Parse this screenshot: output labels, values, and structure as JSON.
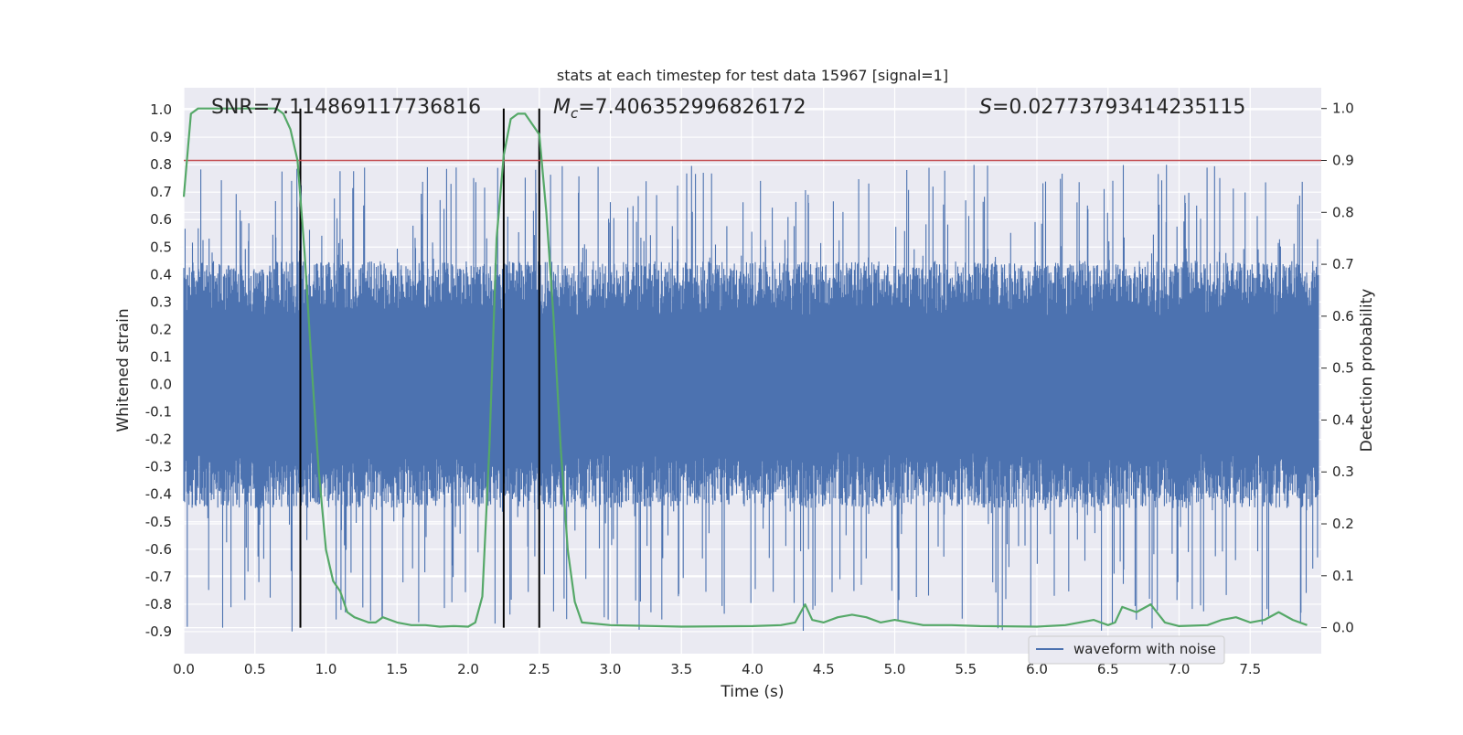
{
  "chart_data": {
    "type": "line",
    "title": "stats at each timestep for test data 15967 [signal=1]",
    "xlabel": "Time (s)",
    "ylabel": "Whitened strain",
    "y2label": "Detection probability",
    "xlim": [
      0.0,
      8.0
    ],
    "ylim": [
      -0.98,
      1.08
    ],
    "y2lim": [
      -0.05,
      1.04
    ],
    "xticks": [
      "0.0",
      "0.5",
      "1.0",
      "1.5",
      "2.0",
      "2.5",
      "3.0",
      "3.5",
      "4.0",
      "4.5",
      "5.0",
      "5.5",
      "6.0",
      "6.5",
      "7.0",
      "7.5"
    ],
    "yticks": [
      "1.0",
      "0.9",
      "0.8",
      "0.7",
      "0.6",
      "0.5",
      "0.4",
      "0.3",
      "0.2",
      "0.1",
      "0.0",
      "-0.1",
      "-0.2",
      "-0.3",
      "-0.4",
      "-0.5",
      "-0.6",
      "-0.7",
      "-0.8",
      "-0.9"
    ],
    "y2ticks": [
      "1.0",
      "0.9",
      "0.8",
      "0.7",
      "0.6",
      "0.5",
      "0.4",
      "0.3",
      "0.2",
      "0.1",
      "0.0"
    ],
    "annotations": {
      "snr": "SNR=7.114869117736816",
      "mc_symbol": "M",
      "mc_subscript": "c",
      "mc_value": "=7.406352996826172",
      "s_symbol": "S",
      "s_value": "=0.02773793414235115"
    },
    "threshold": {
      "value": 0.9,
      "axis": "right",
      "color": "#c44e52"
    },
    "vertical_lines": [
      0.82,
      2.25,
      2.5
    ],
    "legend": {
      "placement": "lower-right",
      "entries": [
        "waveform with noise"
      ]
    },
    "grid": true,
    "series": [
      {
        "name": "waveform with noise",
        "axis": "left",
        "color": "#4c72b0",
        "kind": "noise",
        "typical_envelope": [
          -0.45,
          0.45
        ],
        "peak_range": [
          -0.9,
          0.8
        ]
      },
      {
        "axis": "right",
        "color": "#55a868",
        "x": [
          0.0,
          0.05,
          0.1,
          0.2,
          0.3,
          0.4,
          0.5,
          0.6,
          0.65,
          0.7,
          0.75,
          0.8,
          0.85,
          0.9,
          0.95,
          1.0,
          1.05,
          1.1,
          1.15,
          1.2,
          1.3,
          1.35,
          1.4,
          1.5,
          1.6,
          1.7,
          1.8,
          1.9,
          2.0,
          2.05,
          2.1,
          2.15,
          2.2,
          2.25,
          2.3,
          2.35,
          2.4,
          2.45,
          2.5,
          2.55,
          2.6,
          2.65,
          2.7,
          2.75,
          2.8,
          3.0,
          3.5,
          4.0,
          4.2,
          4.3,
          4.37,
          4.42,
          4.5,
          4.6,
          4.7,
          4.8,
          4.9,
          5.0,
          5.1,
          5.2,
          5.4,
          5.6,
          6.0,
          6.2,
          6.3,
          6.4,
          6.5,
          6.55,
          6.6,
          6.7,
          6.8,
          6.9,
          7.0,
          7.2,
          7.3,
          7.4,
          7.5,
          7.6,
          7.7,
          7.8,
          7.9
        ],
        "values": [
          0.83,
          0.99,
          1.0,
          1.0,
          1.0,
          1.0,
          1.0,
          1.0,
          1.0,
          0.99,
          0.96,
          0.9,
          0.72,
          0.5,
          0.3,
          0.15,
          0.09,
          0.07,
          0.03,
          0.02,
          0.01,
          0.01,
          0.02,
          0.01,
          0.005,
          0.005,
          0.002,
          0.003,
          0.002,
          0.01,
          0.06,
          0.35,
          0.75,
          0.91,
          0.98,
          0.99,
          0.99,
          0.97,
          0.95,
          0.8,
          0.6,
          0.35,
          0.15,
          0.05,
          0.01,
          0.005,
          0.002,
          0.003,
          0.005,
          0.01,
          0.045,
          0.015,
          0.01,
          0.02,
          0.025,
          0.02,
          0.01,
          0.015,
          0.01,
          0.005,
          0.005,
          0.003,
          0.002,
          0.005,
          0.01,
          0.015,
          0.005,
          0.01,
          0.04,
          0.03,
          0.045,
          0.01,
          0.003,
          0.005,
          0.015,
          0.02,
          0.01,
          0.015,
          0.03,
          0.015,
          0.005
        ]
      }
    ]
  }
}
